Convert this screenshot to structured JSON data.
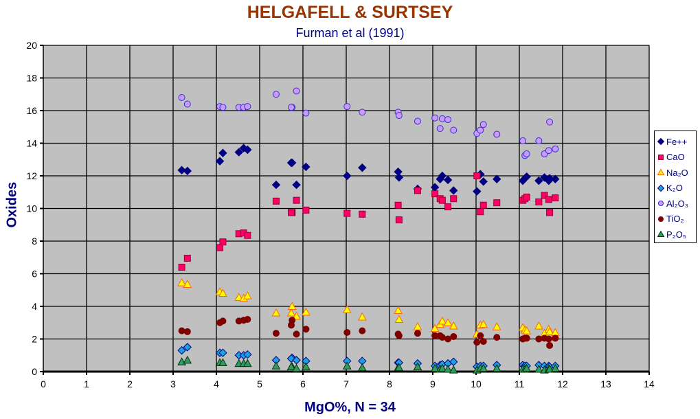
{
  "chart_data": {
    "type": "scatter",
    "title": "HELGAFELL & SURTSEY",
    "subtitle": "Furman et al (1991)",
    "xlabel": "MgO%,  N = 34",
    "ylabel": "Oxides",
    "xlim": [
      0,
      14
    ],
    "ylim": [
      0,
      20
    ],
    "xticks": [
      "0",
      "1",
      "2",
      "3",
      "4",
      "5",
      "6",
      "7",
      "8",
      "9",
      "10",
      "11",
      "12",
      "13",
      "14"
    ],
    "yticks": [
      "0",
      "2",
      "4",
      "6",
      "8",
      "10",
      "12",
      "14",
      "16",
      "18",
      "20"
    ],
    "grid": true,
    "legend_position": "right",
    "x": [
      3.2,
      3.33,
      4.08,
      4.15,
      4.52,
      4.63,
      4.72,
      5.38,
      5.75,
      5.73,
      5.85,
      6.07,
      7.02,
      7.37,
      8.2,
      8.22,
      8.65,
      9.05,
      9.17,
      9.22,
      9.35,
      9.48,
      10.02,
      10.1,
      10.17,
      10.48,
      11.08,
      11.13,
      11.17,
      11.45,
      11.58,
      11.68,
      11.7,
      11.83
    ],
    "series": [
      {
        "name": "Fe++",
        "label": "Fe++",
        "marker": "diamond",
        "fill": "#000080",
        "stroke": "#000080",
        "values": [
          12.35,
          12.3,
          12.9,
          13.4,
          13.45,
          13.7,
          13.6,
          11.45,
          12.8,
          12.8,
          11.45,
          12.55,
          12.0,
          12.5,
          12.25,
          11.9,
          11.2,
          11.3,
          11.8,
          12.0,
          11.75,
          11.1,
          11.05,
          12.1,
          11.65,
          11.8,
          11.7,
          11.85,
          11.95,
          11.7,
          11.9,
          11.7,
          11.85,
          11.8
        ]
      },
      {
        "name": "CaO",
        "label": "CaO",
        "marker": "square",
        "fill": "#ff0066",
        "stroke": "#990033",
        "values": [
          6.4,
          6.95,
          7.6,
          7.95,
          8.45,
          8.5,
          8.35,
          10.45,
          9.75,
          9.75,
          10.5,
          9.9,
          9.7,
          9.65,
          10.2,
          9.3,
          11.1,
          10.9,
          10.6,
          10.5,
          10.1,
          10.6,
          12.0,
          9.8,
          10.2,
          10.35,
          10.5,
          10.6,
          10.7,
          10.4,
          10.8,
          10.55,
          9.75,
          10.65
        ]
      },
      {
        "name": "Na2O",
        "label": "Na₂O",
        "marker": "triangle",
        "fill": "#ffff00",
        "stroke": "#ff6600",
        "values": [
          5.45,
          5.35,
          4.9,
          4.8,
          4.55,
          4.5,
          4.65,
          3.6,
          4.0,
          3.6,
          3.4,
          3.65,
          3.8,
          3.35,
          3.75,
          3.2,
          2.75,
          2.65,
          2.9,
          3.1,
          3.0,
          2.8,
          2.3,
          2.85,
          2.9,
          2.75,
          2.7,
          2.55,
          2.5,
          2.8,
          2.35,
          2.6,
          2.45,
          2.4
        ]
      },
      {
        "name": "K2O",
        "label": "K₂O",
        "marker": "diamond",
        "fill": "#1ea0e0",
        "stroke": "#000080",
        "values": [
          1.3,
          1.5,
          1.15,
          1.15,
          1.0,
          1.0,
          1.05,
          0.7,
          0.85,
          0.8,
          0.7,
          0.65,
          0.65,
          0.65,
          0.55,
          0.55,
          0.5,
          0.35,
          0.4,
          0.45,
          0.5,
          0.6,
          0.3,
          0.35,
          0.35,
          0.4,
          0.4,
          0.35,
          0.35,
          0.4,
          0.35,
          0.35,
          0.3,
          0.35
        ]
      },
      {
        "name": "Al2O3",
        "label": "Al₂O₃",
        "marker": "circle",
        "fill": "#cc99ff",
        "stroke": "#3333cc",
        "values": [
          16.8,
          16.4,
          16.25,
          16.2,
          16.2,
          16.2,
          16.25,
          17.0,
          16.2,
          16.2,
          17.2,
          15.85,
          16.25,
          15.9,
          15.9,
          15.7,
          15.35,
          15.55,
          14.9,
          15.5,
          15.45,
          14.8,
          14.6,
          14.8,
          15.15,
          14.55,
          14.15,
          13.25,
          13.35,
          14.15,
          13.35,
          13.55,
          15.3,
          13.65
        ]
      },
      {
        "name": "TiO2",
        "label": "TiO₂",
        "marker": "circle",
        "fill": "#800000",
        "stroke": "#800000",
        "values": [
          2.5,
          2.45,
          3.0,
          3.1,
          3.1,
          3.15,
          3.2,
          2.35,
          3.15,
          2.85,
          2.3,
          2.6,
          2.4,
          2.5,
          2.3,
          2.2,
          2.35,
          2.2,
          2.2,
          2.1,
          2.0,
          2.15,
          1.8,
          2.2,
          1.85,
          2.1,
          2.0,
          2.05,
          2.05,
          2.0,
          2.05,
          2.0,
          1.6,
          2.05
        ]
      },
      {
        "name": "P2O5",
        "label": "P₂O₅",
        "marker": "triangle",
        "fill": "#339966",
        "stroke": "#003300",
        "values": [
          0.6,
          0.7,
          0.55,
          0.55,
          0.5,
          0.5,
          0.5,
          0.35,
          0.3,
          0.3,
          0.2,
          0.3,
          0.35,
          0.25,
          0.25,
          0.25,
          0.3,
          0.2,
          0.15,
          0.2,
          0.15,
          0.1,
          0.1,
          0.2,
          0.2,
          0.2,
          0.15,
          0.15,
          0.2,
          0.15,
          0.1,
          0.15,
          0.15,
          0.2
        ]
      }
    ]
  }
}
